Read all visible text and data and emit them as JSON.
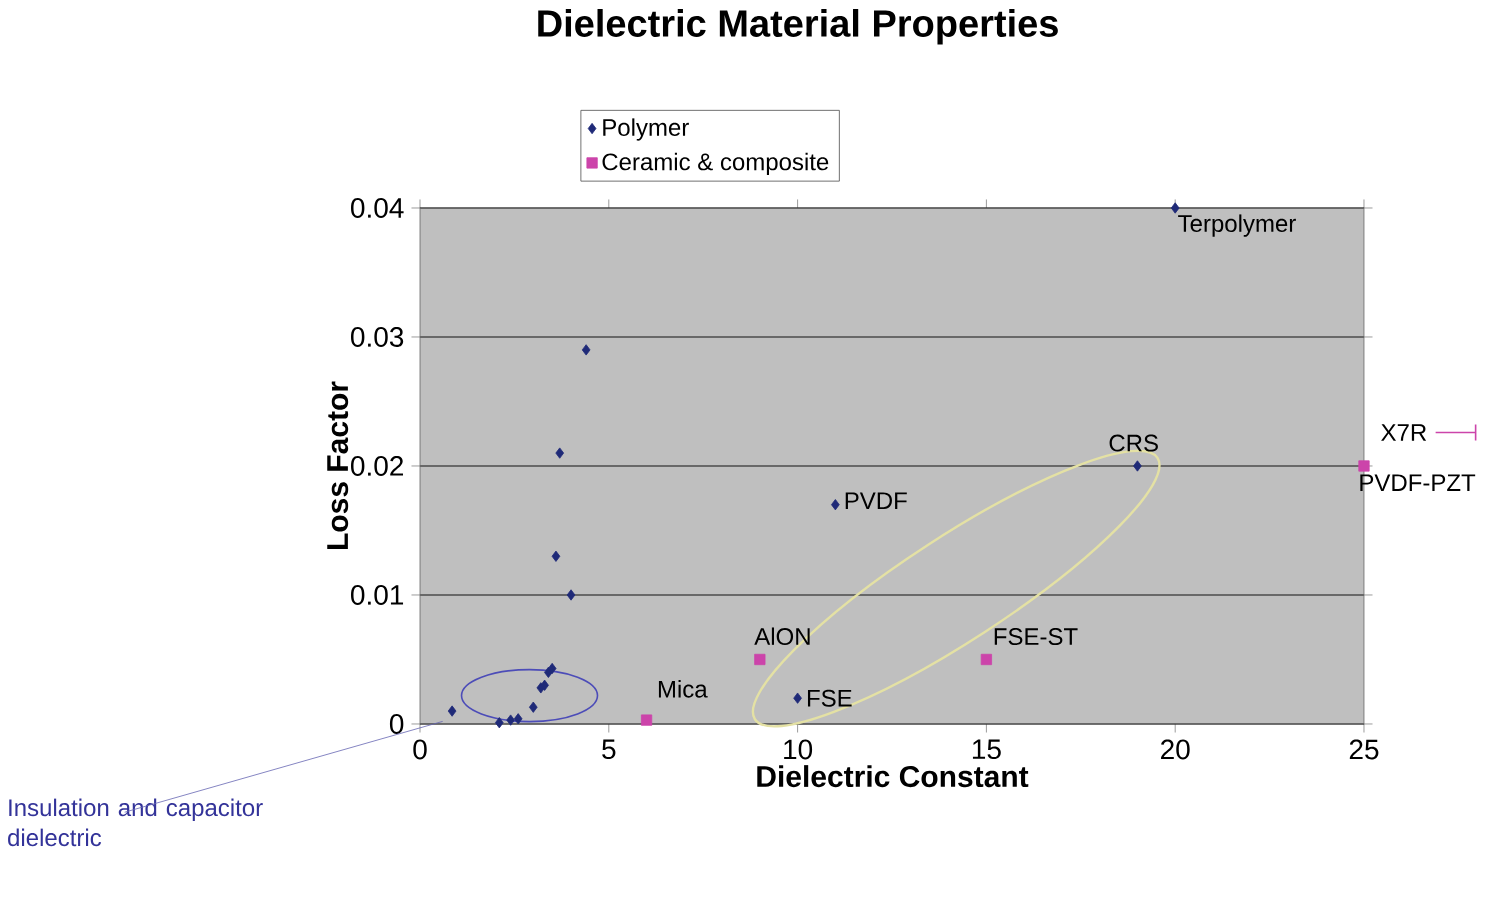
{
  "chart_data": {
    "type": "scatter",
    "title": "Dielectric Material Properties",
    "xlabel": "Dielectric Constant",
    "ylabel": "Loss Factor",
    "xlim": [
      0,
      25
    ],
    "ylim": [
      0,
      0.04
    ],
    "xticks": [
      0,
      5,
      10,
      15,
      20,
      25
    ],
    "yticks": [
      0,
      0.01,
      0.02,
      0.03,
      0.04
    ],
    "grid": "y",
    "legend": "top left",
    "series": [
      {
        "name": "Polymer",
        "color": "#1f2a78",
        "marker": "diamond",
        "x": [
          4.4,
          3.7,
          3.6,
          4.0,
          0.85,
          2.1,
          2.4,
          2.6,
          3.0,
          3.2,
          3.3,
          3.4,
          3.5,
          11,
          10,
          19,
          20
        ],
        "values": [
          0.029,
          0.021,
          0.013,
          0.01,
          0.001,
          0.0001,
          0.0003,
          0.0004,
          0.0013,
          0.0028,
          0.003,
          0.004,
          0.0043,
          0.017,
          0.002,
          0.02,
          0.04
        ]
      },
      {
        "name": "Ceramic & composite",
        "color": "#cc44aa",
        "marker": "square",
        "x": [
          6,
          9,
          15,
          25
        ],
        "values": [
          0.0003,
          0.005,
          0.005,
          0.02
        ]
      }
    ],
    "annotations": [
      {
        "text": "Terpolymer",
        "x": 20,
        "y": 0.04
      },
      {
        "text": "CRS",
        "x": 19,
        "y": 0.02
      },
      {
        "text": "PVDF",
        "x": 11,
        "y": 0.017
      },
      {
        "text": "AlON",
        "x": 9,
        "y": 0.005
      },
      {
        "text": "FSE-ST",
        "x": 15,
        "y": 0.005
      },
      {
        "text": "FSE",
        "x": 10,
        "y": 0.002
      },
      {
        "text": "Mica",
        "x": 6,
        "y": 0.0003
      },
      {
        "text": "PVDF-PZT",
        "x": 25,
        "y": 0.02
      },
      "X7R",
      "Insulation and capacitor dielectric"
    ]
  }
}
